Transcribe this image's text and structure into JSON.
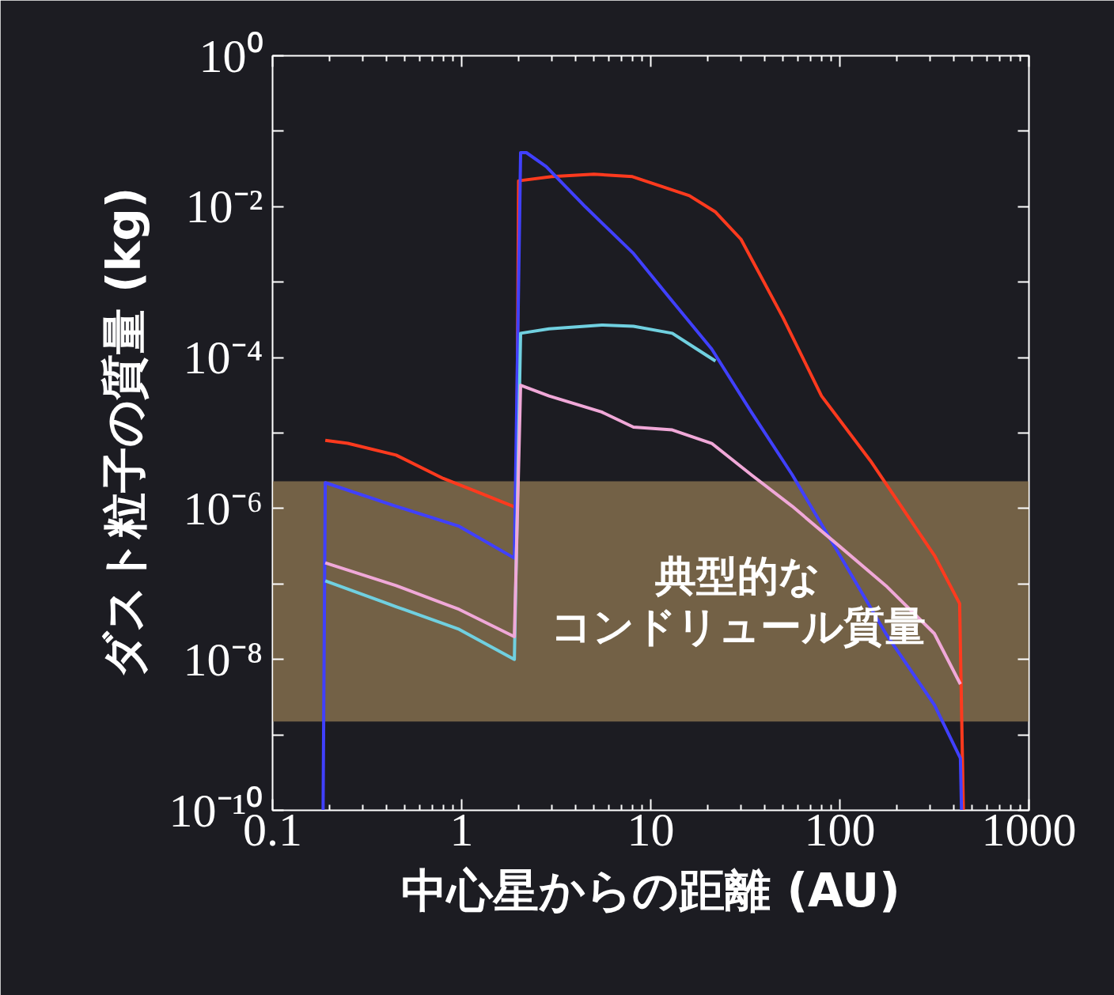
{
  "chart_data": {
    "type": "line",
    "xlabel": "中心星からの距離 (AU)",
    "ylabel": "ダスト粒子の質量 (kg)",
    "log": "xy",
    "grid": false,
    "marker": "none",
    "line_style": "solid",
    "xlim": [
      0.1,
      1000
    ],
    "xticks": [
      0.1,
      1,
      10,
      100,
      1000
    ],
    "ylim": [
      1e-10,
      1
    ],
    "yticks": [
      {
        "value": 1,
        "label": "10⁰"
      },
      {
        "value": 0.1,
        "label": null
      },
      {
        "value": 0.01,
        "label": "10⁻²"
      },
      {
        "value": 0.001,
        "label": null
      },
      {
        "value": 0.0001,
        "label": "10⁻⁴"
      },
      {
        "value": 1e-05,
        "label": null
      },
      {
        "value": 1e-06,
        "label": "10⁻⁶"
      },
      {
        "value": 1e-07,
        "label": null
      },
      {
        "value": 1e-08,
        "label": "10⁻⁸"
      },
      {
        "value": 1e-09,
        "label": null
      },
      {
        "value": 1e-10,
        "label": "10⁻¹⁰"
      }
    ],
    "bands": [
      {
        "axis": "y",
        "from": 1.5e-09,
        "to": 2.3e-06,
        "label": "典型的なコンドリュール質量",
        "color": "#8a7350"
      }
    ],
    "series": [
      {
        "color": "#ff3a1e",
        "x": [
          0.19,
          0.25,
          0.45,
          0.8,
          1.18,
          1.87,
          1.95,
          2.0,
          3,
          5,
          8,
          16,
          22,
          30,
          50,
          80,
          145,
          316,
          430,
          450
        ],
        "values": [
          8e-06,
          7.3e-06,
          5.1e-06,
          2.5e-06,
          1.7e-06,
          1.07e-06,
          1e-06,
          0.022,
          0.025,
          0.027,
          0.025,
          0.014,
          0.0085,
          0.0037,
          0.00034,
          3.1e-05,
          4.3e-06,
          2.4e-07,
          5.5e-08,
          1e-10
        ]
      },
      {
        "color": "#4040ff",
        "x": [
          0.185,
          0.19,
          0.45,
          0.97,
          1.9,
          2.05,
          2.2,
          2.8,
          4.5,
          8.1,
          13,
          21,
          34,
          56,
          99,
          175,
          316,
          434,
          440
        ],
        "values": [
          1e-10,
          2.2e-06,
          1.07e-06,
          5.8e-07,
          2.2e-07,
          0.052,
          0.052,
          0.034,
          0.01,
          0.0024,
          0.00056,
          0.00013,
          1.9e-05,
          2.8e-06,
          2.5e-07,
          2.2e-08,
          2.5e-09,
          4.9e-10,
          1e-10
        ]
      },
      {
        "color": "#70d0e0",
        "x": [
          0.19,
          0.45,
          0.97,
          1.9,
          2.05,
          2.9,
          5.5,
          8.1,
          13,
          17.5,
          22
        ],
        "values": [
          1.1e-07,
          5e-08,
          2.5e-08,
          1e-08,
          0.00021,
          0.00024,
          0.00027,
          0.00026,
          0.00021,
          0.00013,
          9e-05
        ]
      },
      {
        "color": "#f0a8d8",
        "x": [
          0.19,
          0.45,
          0.97,
          1.9,
          2.05,
          2.9,
          5.5,
          8.1,
          13,
          21,
          34,
          56,
          99,
          175,
          316,
          434
        ],
        "values": [
          1.9e-07,
          9.5e-08,
          4.6e-08,
          2e-08,
          4.3e-05,
          3.1e-05,
          1.9e-05,
          1.2e-05,
          1.1e-05,
          7.3e-06,
          2.8e-06,
          1.07e-06,
          3.2e-07,
          9.5e-08,
          2.2e-08,
          4.7e-09
        ]
      }
    ]
  }
}
